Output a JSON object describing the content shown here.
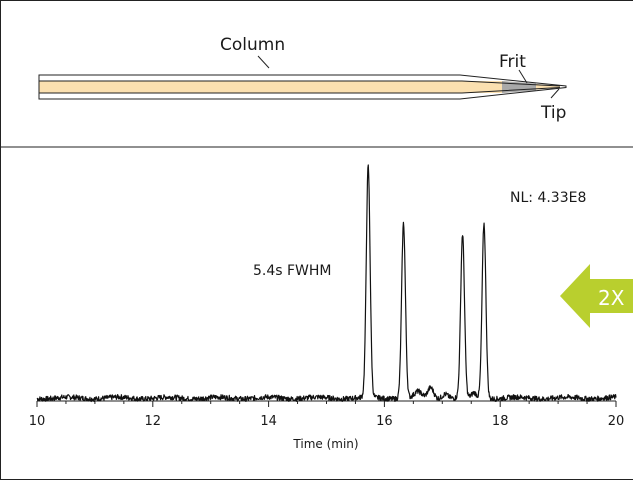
{
  "diagram": {
    "labels": {
      "column": "Column",
      "frit": "Frit",
      "tip": "Tip"
    },
    "colors": {
      "packing": "#fbe0b0",
      "frit": "#a9a9a9",
      "outline": "#222222"
    }
  },
  "chart_data": {
    "type": "line",
    "title": "",
    "xlabel": "Time (min)",
    "ylabel": "",
    "xlim": [
      10,
      20
    ],
    "ylim": [
      0,
      100
    ],
    "xticks": [
      "10",
      "12",
      "14",
      "16",
      "18",
      "20"
    ],
    "annotations": {
      "nl": "NL: 4.33E8",
      "fwhm": "5.4s FWHM",
      "zoom": "2X"
    },
    "peaks": [
      {
        "x": 15.72,
        "y": 99
      },
      {
        "x": 16.33,
        "y": 75
      },
      {
        "x": 17.35,
        "y": 70
      },
      {
        "x": 17.72,
        "y": 75
      }
    ],
    "colors": {
      "trace": "#111111",
      "arrow": "#b9cf2e"
    }
  }
}
